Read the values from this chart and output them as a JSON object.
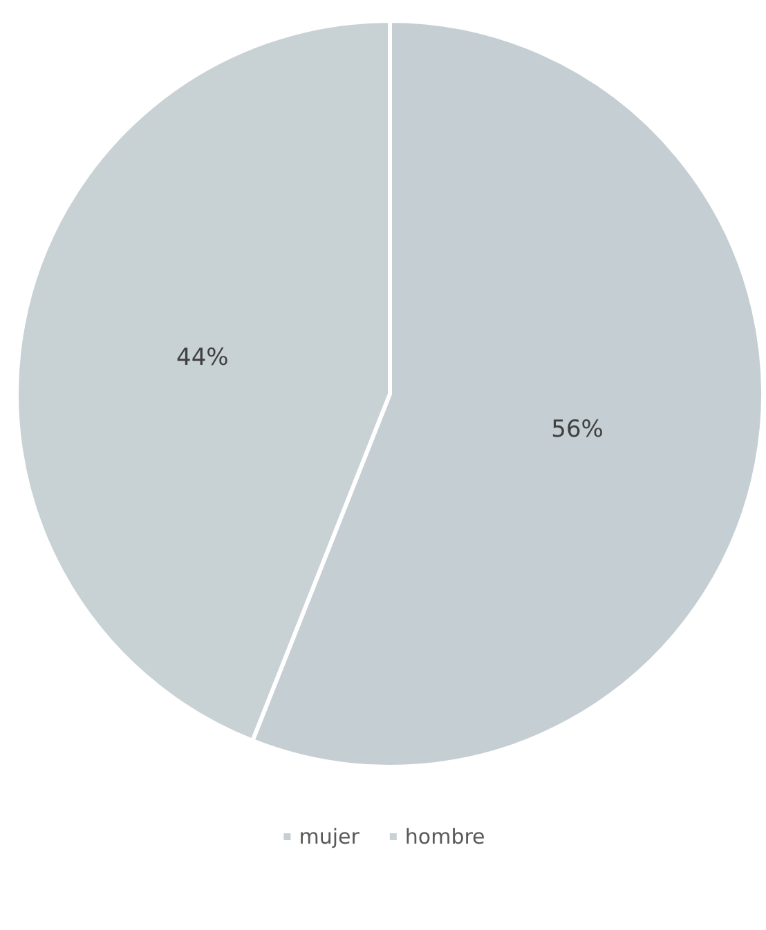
{
  "chart_data": {
    "type": "pie",
    "categories": [
      "mujer",
      "hombre"
    ],
    "values": [
      56,
      44
    ],
    "colors": [
      "#c5cfd3",
      "#c8d1d4"
    ],
    "value_labels": [
      "56%",
      "44%"
    ],
    "legend": "bottom"
  }
}
